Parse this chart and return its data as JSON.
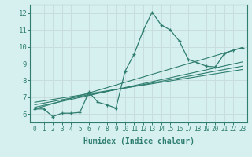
{
  "xlabel": "Humidex (Indice chaleur)",
  "bg_color": "#d6f0f0",
  "grid_color": "#c8dede",
  "line_color": "#2e7d6e",
  "xlim": [
    -0.5,
    23.5
  ],
  "ylim": [
    5.5,
    12.5
  ],
  "yticks": [
    6,
    7,
    8,
    9,
    10,
    11,
    12
  ],
  "xticks": [
    0,
    1,
    2,
    3,
    4,
    5,
    6,
    7,
    8,
    9,
    10,
    11,
    12,
    13,
    14,
    15,
    16,
    17,
    18,
    19,
    20,
    21,
    22,
    23
  ],
  "series": [
    [
      0,
      6.3
    ],
    [
      1,
      6.3
    ],
    [
      2,
      5.85
    ],
    [
      3,
      6.05
    ],
    [
      4,
      6.05
    ],
    [
      5,
      6.1
    ],
    [
      6,
      7.3
    ],
    [
      7,
      6.7
    ],
    [
      8,
      6.55
    ],
    [
      9,
      6.35
    ],
    [
      10,
      8.55
    ],
    [
      11,
      9.55
    ],
    [
      12,
      10.95
    ],
    [
      13,
      12.05
    ],
    [
      14,
      11.3
    ],
    [
      15,
      11.0
    ],
    [
      16,
      10.35
    ],
    [
      17,
      9.25
    ],
    [
      18,
      9.05
    ],
    [
      19,
      8.85
    ],
    [
      20,
      8.8
    ],
    [
      21,
      9.6
    ],
    [
      22,
      9.8
    ],
    [
      23,
      9.95
    ]
  ],
  "trend_lines": [
    [
      [
        0,
        6.3
      ],
      [
        23,
        9.95
      ]
    ],
    [
      [
        0,
        6.4
      ],
      [
        23,
        9.1
      ]
    ],
    [
      [
        0,
        6.55
      ],
      [
        23,
        8.85
      ]
    ],
    [
      [
        0,
        6.7
      ],
      [
        23,
        8.65
      ]
    ]
  ]
}
